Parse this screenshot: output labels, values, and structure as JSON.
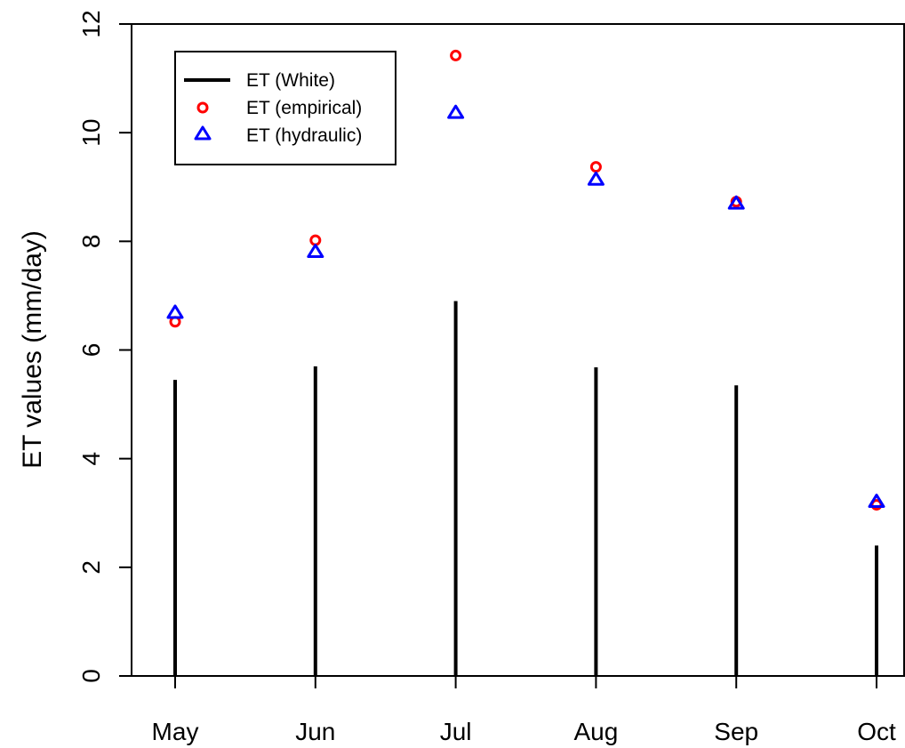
{
  "chart_data": {
    "type": "line",
    "title": "",
    "xlabel": "",
    "ylabel": "ET values (mm/day)",
    "categories": [
      "May",
      "Jun",
      "Jul",
      "Aug",
      "Sep",
      "Oct"
    ],
    "ylim": [
      0,
      12
    ],
    "yticks": [
      "0",
      "2",
      "4",
      "6",
      "8",
      "10",
      "12"
    ],
    "grid": false,
    "legend_position": "top-left",
    "series": [
      {
        "name": "ET (White)",
        "style": "vertical-lines",
        "color": "#000000",
        "values": [
          5.45,
          5.7,
          6.9,
          5.68,
          5.35,
          2.4
        ]
      },
      {
        "name": "ET (empirical)",
        "style": "open-circle",
        "color": "#ff0000",
        "values": [
          6.52,
          8.02,
          11.42,
          9.37,
          8.73,
          3.15
        ]
      },
      {
        "name": "ET (hydraulic)",
        "style": "open-triangle",
        "color": "#0000ff",
        "values": [
          6.68,
          7.8,
          10.36,
          9.13,
          8.69,
          3.2
        ]
      }
    ]
  }
}
